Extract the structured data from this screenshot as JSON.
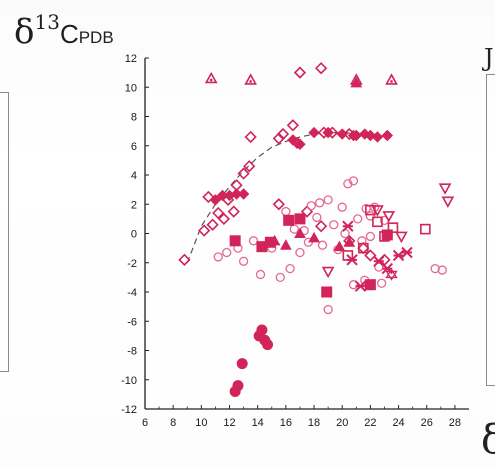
{
  "chart_data": {
    "type": "scatter",
    "title": "",
    "ylabel": "δ13CPDB",
    "ylabel_parts": {
      "symbol": "δ",
      "superscript": "13",
      "main": "C",
      "subscript": "PDB"
    },
    "xlabel": "",
    "xlim": [
      6,
      29
    ],
    "ylim": [
      -12,
      12
    ],
    "x_ticks": [
      6,
      8,
      10,
      12,
      14,
      16,
      18,
      20,
      22,
      24,
      26,
      28
    ],
    "y_ticks": [
      -12,
      -10,
      -8,
      -6,
      -4,
      -2,
      0,
      2,
      4,
      6,
      8,
      10,
      12
    ],
    "grid": false,
    "colors": {
      "marker": "#d0245a",
      "light_marker": "#e4698f",
      "trend": "#555555",
      "axis": "#222222"
    },
    "trend_line": {
      "style": "dashed",
      "points": [
        [
          9.0,
          -2.0
        ],
        [
          10.0,
          0.5
        ],
        [
          11.0,
          2.0
        ],
        [
          12.0,
          3.2
        ],
        [
          13.0,
          4.3
        ],
        [
          14.0,
          5.2
        ],
        [
          15.0,
          5.9
        ],
        [
          16.0,
          6.3
        ],
        [
          17.0,
          6.6
        ],
        [
          18.0,
          6.8
        ],
        [
          19.0,
          6.9
        ],
        [
          20.0,
          6.9
        ],
        [
          22.0,
          6.8
        ],
        [
          23.5,
          6.7
        ]
      ]
    },
    "series": [
      {
        "marker": "diamond-open",
        "color": "#d0245a",
        "points": [
          [
            8.8,
            -1.8
          ],
          [
            10.2,
            0.2
          ],
          [
            10.5,
            2.5
          ],
          [
            10.8,
            0.6
          ],
          [
            11.2,
            1.4
          ],
          [
            11.6,
            1.0
          ],
          [
            11.9,
            2.3
          ],
          [
            12.3,
            1.5
          ],
          [
            12.5,
            3.3
          ],
          [
            13.0,
            4.1
          ],
          [
            13.4,
            4.6
          ],
          [
            13.5,
            6.6
          ],
          [
            15.5,
            6.5
          ],
          [
            15.8,
            6.8
          ],
          [
            16.5,
            7.4
          ],
          [
            16.8,
            6.2
          ],
          [
            17.0,
            11.0
          ],
          [
            18.5,
            11.3
          ],
          [
            18.7,
            6.9
          ],
          [
            19.3,
            6.9
          ],
          [
            20.5,
            6.8
          ],
          [
            15.5,
            2.0
          ],
          [
            17.5,
            1.5
          ],
          [
            18.5,
            0.5
          ],
          [
            20.5,
            -0.5
          ],
          [
            21.5,
            -1.0
          ],
          [
            22.0,
            -1.5
          ],
          [
            23.0,
            -1.8
          ]
        ]
      },
      {
        "marker": "diamond-filled",
        "color": "#d0245a",
        "points": [
          [
            11.0,
            2.3
          ],
          [
            11.5,
            2.6
          ],
          [
            12.0,
            2.6
          ],
          [
            12.5,
            2.7
          ],
          [
            13.0,
            2.7
          ],
          [
            16.5,
            6.4
          ],
          [
            17.0,
            6.1
          ],
          [
            18.0,
            6.9
          ],
          [
            19.0,
            6.9
          ],
          [
            20.0,
            6.8
          ],
          [
            21.0,
            6.7
          ],
          [
            22.0,
            6.7
          ],
          [
            22.5,
            6.6
          ],
          [
            23.2,
            6.7
          ],
          [
            20.8,
            6.7
          ],
          [
            21.6,
            6.8
          ]
        ]
      },
      {
        "marker": "circle-open",
        "color": "#e4698f",
        "points": [
          [
            11.2,
            -1.6
          ],
          [
            11.8,
            -1.3
          ],
          [
            12.6,
            -1.0
          ],
          [
            13.0,
            -1.9
          ],
          [
            13.7,
            -0.5
          ],
          [
            14.2,
            -2.8
          ],
          [
            15.0,
            -1.0
          ],
          [
            15.6,
            -3.0
          ],
          [
            16.0,
            1.5
          ],
          [
            16.3,
            -2.4
          ],
          [
            17.0,
            -1.3
          ],
          [
            17.3,
            0.2
          ],
          [
            17.8,
            1.9
          ],
          [
            18.2,
            1.1
          ],
          [
            18.6,
            -0.8
          ],
          [
            19.0,
            2.3
          ],
          [
            19.4,
            0.6
          ],
          [
            19.7,
            -1.1
          ],
          [
            20.0,
            1.8
          ],
          [
            20.4,
            3.4
          ],
          [
            20.8,
            3.6
          ],
          [
            21.1,
            1.0
          ],
          [
            21.4,
            -0.5
          ],
          [
            21.7,
            1.7
          ],
          [
            22.0,
            -0.2
          ],
          [
            22.3,
            1.8
          ],
          [
            22.6,
            -2.3
          ],
          [
            23.0,
            0.9
          ],
          [
            19.0,
            -5.2
          ],
          [
            20.8,
            -3.5
          ],
          [
            21.6,
            -3.2
          ],
          [
            22.8,
            -3.4
          ],
          [
            26.6,
            -2.4
          ],
          [
            27.1,
            -2.5
          ],
          [
            16.6,
            0.3
          ],
          [
            17.6,
            -0.6
          ],
          [
            18.4,
            2.1
          ],
          [
            20.2,
            0.0
          ],
          [
            22.0,
            1.2
          ]
        ]
      },
      {
        "marker": "circle-filled",
        "color": "#d0245a",
        "points": [
          [
            12.4,
            -10.8
          ],
          [
            12.6,
            -10.4
          ],
          [
            12.9,
            -8.9
          ],
          [
            14.1,
            -7.0
          ],
          [
            14.3,
            -6.6
          ],
          [
            14.5,
            -7.3
          ],
          [
            14.7,
            -7.6
          ]
        ]
      },
      {
        "marker": "square-open",
        "color": "#d0245a",
        "points": [
          [
            20.4,
            -1.5
          ],
          [
            21.5,
            -1.0
          ],
          [
            22.0,
            1.6
          ],
          [
            22.5,
            0.8
          ],
          [
            23.0,
            -0.2
          ],
          [
            23.6,
            0.4
          ],
          [
            25.9,
            0.3
          ]
        ]
      },
      {
        "marker": "square-filled",
        "color": "#d0245a",
        "points": [
          [
            12.4,
            -0.5
          ],
          [
            14.3,
            -0.9
          ],
          [
            14.9,
            -0.6
          ],
          [
            16.2,
            0.9
          ],
          [
            17.0,
            1.0
          ],
          [
            18.9,
            -4.0
          ],
          [
            22.0,
            -3.5
          ],
          [
            23.2,
            -0.1
          ]
        ]
      },
      {
        "marker": "triangle-filled",
        "color": "#d0245a",
        "points": [
          [
            15.2,
            -0.5
          ],
          [
            16.0,
            -0.8
          ],
          [
            17.0,
            0.0
          ],
          [
            18.0,
            -0.3
          ],
          [
            21.0,
            10.3
          ],
          [
            20.5,
            -0.6
          ],
          [
            19.8,
            -0.9
          ]
        ]
      },
      {
        "marker": "triangle-open-star",
        "color": "#d0245a",
        "points": [
          [
            10.7,
            10.6
          ],
          [
            13.5,
            10.5
          ],
          [
            21.0,
            10.5
          ],
          [
            23.5,
            10.5
          ]
        ]
      },
      {
        "marker": "triangle-down-open",
        "color": "#d0245a",
        "points": [
          [
            19.0,
            -2.6
          ],
          [
            22.5,
            1.6
          ],
          [
            23.3,
            1.2
          ],
          [
            24.2,
            -0.2
          ],
          [
            27.3,
            3.1
          ],
          [
            27.5,
            2.2
          ]
        ]
      },
      {
        "marker": "cross",
        "color": "#d0245a",
        "points": [
          [
            20.4,
            0.5
          ],
          [
            20.7,
            -1.8
          ],
          [
            21.3,
            -3.6
          ],
          [
            22.6,
            -1.9
          ],
          [
            23.2,
            -2.4
          ],
          [
            24.0,
            -1.5
          ],
          [
            24.6,
            -1.3
          ]
        ]
      },
      {
        "marker": "star-open",
        "color": "#d0245a",
        "points": [
          [
            23.5,
            -2.8
          ]
        ]
      }
    ]
  },
  "page_elements": {
    "top_right_stub": "J",
    "bottom_right_stub": "δ"
  }
}
